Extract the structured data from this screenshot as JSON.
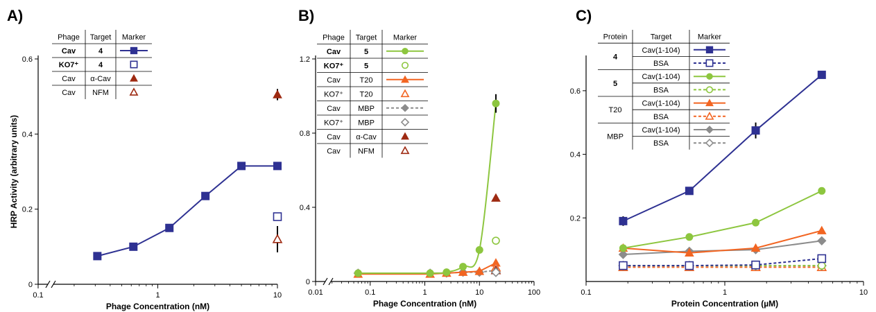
{
  "ylabel": "HRP Activity (arbitrary units)",
  "colors": {
    "blue": "#2e3192",
    "green": "#8dc63f",
    "orange": "#f26522",
    "gray": "#8c8c8c",
    "darkred": "#9e2a12"
  },
  "chart_data": [
    {
      "type": "line",
      "panel": "A)",
      "xlabel": "Phage Concentration (nM)",
      "xscale": "log",
      "xlim": [
        0.1,
        10
      ],
      "ylim": [
        0,
        0.6
      ],
      "xticks": [
        {
          "v": 0.1,
          "label": "0.1"
        },
        {
          "v": 1,
          "label": "1"
        },
        {
          "v": 10,
          "label": "10"
        }
      ],
      "yticks": [
        {
          "v": 0,
          "label": "0"
        },
        {
          "v": 0.2,
          "label": "0.2"
        },
        {
          "v": 0.4,
          "label": "0.4"
        },
        {
          "v": 0.6,
          "label": "0.6"
        }
      ],
      "axis_break": true,
      "legend": {
        "headers": [
          "Phage",
          "Target",
          "Marker"
        ],
        "rows": [
          {
            "c1": "Cav",
            "c2": "4",
            "bold": true,
            "color": "blue",
            "marker": "square",
            "filled": true,
            "line": "solid"
          },
          {
            "c1": "KO7⁺",
            "c2": "4",
            "bold": true,
            "color": "blue",
            "marker": "square",
            "filled": false,
            "line": "none"
          },
          {
            "c1": "Cav",
            "c2": "α-Cav",
            "color": "darkred",
            "marker": "triangle",
            "filled": true,
            "line": "none"
          },
          {
            "c1": "Cav",
            "c2": "NFM",
            "color": "darkred",
            "marker": "triangle",
            "filled": false,
            "line": "none"
          }
        ]
      },
      "series": [
        {
          "color": "blue",
          "marker": "square",
          "filled": true,
          "line": "solid",
          "x": [
            0.31,
            0.62,
            1.25,
            2.5,
            5,
            10
          ],
          "y": [
            0.075,
            0.1,
            0.15,
            0.235,
            0.315,
            0.315
          ],
          "points": [
            [
              0.3125,
              0.075
            ],
            [
              0.625,
              0.1
            ],
            [
              1.25,
              0.15
            ],
            [
              2.5,
              0.235
            ],
            [
              5,
              0.315
            ],
            [
              10,
              0.315
            ]
          ]
        },
        {
          "color": "blue",
          "marker": "square",
          "filled": false,
          "line": "none",
          "points": [
            [
              10,
              0.18
            ]
          ]
        },
        {
          "color": "darkred",
          "marker": "triangle",
          "filled": true,
          "line": "none",
          "points": [
            [
              10,
              0.505
            ]
          ],
          "err": [
            0.015
          ]
        },
        {
          "color": "darkred",
          "marker": "triangle",
          "filled": false,
          "line": "none",
          "points": [
            [
              10,
              0.12
            ]
          ],
          "err": [
            0.035
          ]
        }
      ]
    },
    {
      "type": "line",
      "panel": "B)",
      "xlabel": "Phage Concentration (nM)",
      "xscale": "log",
      "xlim": [
        0.01,
        100
      ],
      "ylim": [
        0,
        1.2
      ],
      "xticks": [
        {
          "v": 0.01,
          "label": "0.01"
        },
        {
          "v": 0.1,
          "label": "0.1"
        },
        {
          "v": 1,
          "label": "1"
        },
        {
          "v": 10,
          "label": "10"
        },
        {
          "v": 100,
          "label": "100"
        }
      ],
      "yticks": [
        {
          "v": 0,
          "label": "0"
        },
        {
          "v": 0.4,
          "label": "0.4"
        },
        {
          "v": 0.8,
          "label": "0.8"
        },
        {
          "v": 1.2,
          "label": "1.2"
        }
      ],
      "axis_break": true,
      "legend": {
        "headers": [
          "Phage",
          "Target",
          "Marker"
        ],
        "rows": [
          {
            "c1": "Cav",
            "c2": "5",
            "bold": true,
            "color": "green",
            "marker": "circle",
            "filled": true,
            "line": "solid"
          },
          {
            "c1": "KO7⁺",
            "c2": "5",
            "bold": true,
            "color": "green",
            "marker": "circle",
            "filled": false,
            "line": "none"
          },
          {
            "c1": "Cav",
            "c2": "T20",
            "color": "orange",
            "marker": "triangle",
            "filled": true,
            "line": "solid"
          },
          {
            "c1": "KO7⁺",
            "c2": "T20",
            "color": "orange",
            "marker": "triangle",
            "filled": false,
            "line": "none"
          },
          {
            "c1": "Cav",
            "c2": "MBP",
            "color": "gray",
            "marker": "diamond",
            "filled": true,
            "line": "dashed"
          },
          {
            "c1": "KO7⁺",
            "c2": "MBP",
            "color": "gray",
            "marker": "diamond",
            "filled": false,
            "line": "none"
          },
          {
            "c1": "Cav",
            "c2": "α-Cav",
            "color": "darkred",
            "marker": "triangle",
            "filled": true,
            "line": "none"
          },
          {
            "c1": "Cav",
            "c2": "NFM",
            "color": "darkred",
            "marker": "triangle",
            "filled": false,
            "line": "none"
          }
        ]
      },
      "series": [
        {
          "color": "gray",
          "marker": "diamond",
          "filled": true,
          "line": "dashed",
          "points": [
            [
              0.06,
              0.045
            ],
            [
              1.25,
              0.045
            ],
            [
              2.5,
              0.045
            ],
            [
              5,
              0.05
            ],
            [
              10,
              0.05
            ],
            [
              20,
              0.06
            ]
          ]
        },
        {
          "color": "orange",
          "marker": "triangle",
          "filled": true,
          "line": "solid",
          "points": [
            [
              0.06,
              0.04
            ],
            [
              1.25,
              0.04
            ],
            [
              2.5,
              0.045
            ],
            [
              5,
              0.05
            ],
            [
              10,
              0.055
            ],
            [
              20,
              0.1
            ]
          ]
        },
        {
          "color": "green",
          "marker": "circle",
          "filled": true,
          "line": "solid",
          "curve": true,
          "points": [
            [
              0.06,
              0.045
            ],
            [
              1.25,
              0.045
            ],
            [
              2.5,
              0.05
            ],
            [
              5,
              0.08
            ],
            [
              10,
              0.17
            ],
            [
              20,
              0.96
            ]
          ],
          "err": [
            0,
            0,
            0,
            0,
            0,
            0.05
          ]
        },
        {
          "color": "green",
          "marker": "circle",
          "filled": false,
          "line": "none",
          "points": [
            [
              20,
              0.22
            ]
          ]
        },
        {
          "color": "darkred",
          "marker": "triangle",
          "filled": true,
          "line": "none",
          "points": [
            [
              20,
              0.45
            ]
          ]
        },
        {
          "color": "orange",
          "marker": "triangle",
          "filled": false,
          "line": "none",
          "points": [
            [
              20,
              0.075
            ]
          ]
        },
        {
          "color": "darkred",
          "marker": "triangle",
          "filled": false,
          "line": "none",
          "points": [
            [
              20,
              0.06
            ]
          ]
        },
        {
          "color": "gray",
          "marker": "diamond",
          "filled": false,
          "line": "none",
          "points": [
            [
              20,
              0.05
            ]
          ]
        }
      ]
    },
    {
      "type": "line",
      "panel": "C)",
      "xlabel": "Protein Concentration (µM)",
      "xscale": "log",
      "xlim": [
        0.1,
        10
      ],
      "ylim": [
        0,
        0.7
      ],
      "xticks": [
        {
          "v": 0.1,
          "label": "0.1"
        },
        {
          "v": 1,
          "label": "1"
        },
        {
          "v": 10,
          "label": "10"
        }
      ],
      "yticks": [
        {
          "v": 0.2,
          "label": "0.2"
        },
        {
          "v": 0.4,
          "label": "0.4"
        },
        {
          "v": 0.6,
          "label": "0.6"
        }
      ],
      "axis_break": false,
      "legend": {
        "headers": [
          "Protein",
          "Target",
          "Marker"
        ],
        "rows": [
          {
            "c1": "4",
            "c2": "Cav(1-104)",
            "bold": true,
            "color": "blue",
            "marker": "square",
            "filled": true,
            "line": "solid"
          },
          {
            "c1": "",
            "c2": "BSA",
            "color": "blue",
            "marker": "square",
            "filled": false,
            "line": "dashed"
          },
          {
            "c1": "5",
            "c2": "Cav(1-104)",
            "bold": true,
            "color": "green",
            "marker": "circle",
            "filled": true,
            "line": "solid"
          },
          {
            "c1": "",
            "c2": "BSA",
            "color": "green",
            "marker": "circle",
            "filled": false,
            "line": "dashed"
          },
          {
            "c1": "T20",
            "c2": "Cav(1-104)",
            "color": "orange",
            "marker": "triangle",
            "filled": true,
            "line": "solid"
          },
          {
            "c1": "",
            "c2": "BSA",
            "color": "orange",
            "marker": "triangle",
            "filled": false,
            "line": "dashed"
          },
          {
            "c1": "MBP",
            "c2": "Cav(1-104)",
            "color": "gray",
            "marker": "diamond",
            "filled": true,
            "line": "solid"
          },
          {
            "c1": "",
            "c2": "BSA",
            "color": "gray",
            "marker": "diamond",
            "filled": false,
            "line": "dashed"
          }
        ]
      },
      "series": [
        {
          "color": "orange",
          "marker": "triangle",
          "filled": false,
          "line": "dashed",
          "points": [
            [
              0.185,
              0.045
            ],
            [
              0.555,
              0.045
            ],
            [
              1.67,
              0.045
            ],
            [
              5,
              0.045
            ]
          ]
        },
        {
          "color": "gray",
          "marker": "diamond",
          "filled": false,
          "line": "dashed",
          "points": [
            [
              0.185,
              0.05
            ],
            [
              0.555,
              0.05
            ],
            [
              1.67,
              0.05
            ],
            [
              5,
              0.05
            ]
          ]
        },
        {
          "color": "green",
          "marker": "circle",
          "filled": false,
          "line": "dashed",
          "points": [
            [
              0.185,
              0.05
            ],
            [
              0.555,
              0.05
            ],
            [
              1.67,
              0.05
            ],
            [
              5,
              0.05
            ]
          ]
        },
        {
          "color": "blue",
          "marker": "square",
          "filled": false,
          "line": "dashed",
          "points": [
            [
              0.185,
              0.05
            ],
            [
              0.555,
              0.05
            ],
            [
              1.67,
              0.052
            ],
            [
              5,
              0.072
            ]
          ]
        },
        {
          "color": "gray",
          "marker": "diamond",
          "filled": true,
          "line": "solid",
          "points": [
            [
              0.185,
              0.085
            ],
            [
              0.555,
              0.095
            ],
            [
              1.67,
              0.1
            ],
            [
              5,
              0.128
            ]
          ]
        },
        {
          "color": "orange",
          "marker": "triangle",
          "filled": true,
          "line": "solid",
          "points": [
            [
              0.185,
              0.105
            ],
            [
              0.555,
              0.09
            ],
            [
              1.67,
              0.105
            ],
            [
              5,
              0.16
            ]
          ]
        },
        {
          "color": "green",
          "marker": "circle",
          "filled": true,
          "line": "solid",
          "points": [
            [
              0.185,
              0.105
            ],
            [
              0.555,
              0.14
            ],
            [
              1.67,
              0.185
            ],
            [
              5,
              0.285
            ]
          ]
        },
        {
          "color": "blue",
          "marker": "square",
          "filled": true,
          "line": "solid",
          "points": [
            [
              0.185,
              0.19
            ],
            [
              0.555,
              0.285
            ],
            [
              1.67,
              0.475
            ],
            [
              5,
              0.65
            ]
          ],
          "err": [
            0.015,
            0.012,
            0.025,
            0
          ]
        }
      ]
    }
  ]
}
